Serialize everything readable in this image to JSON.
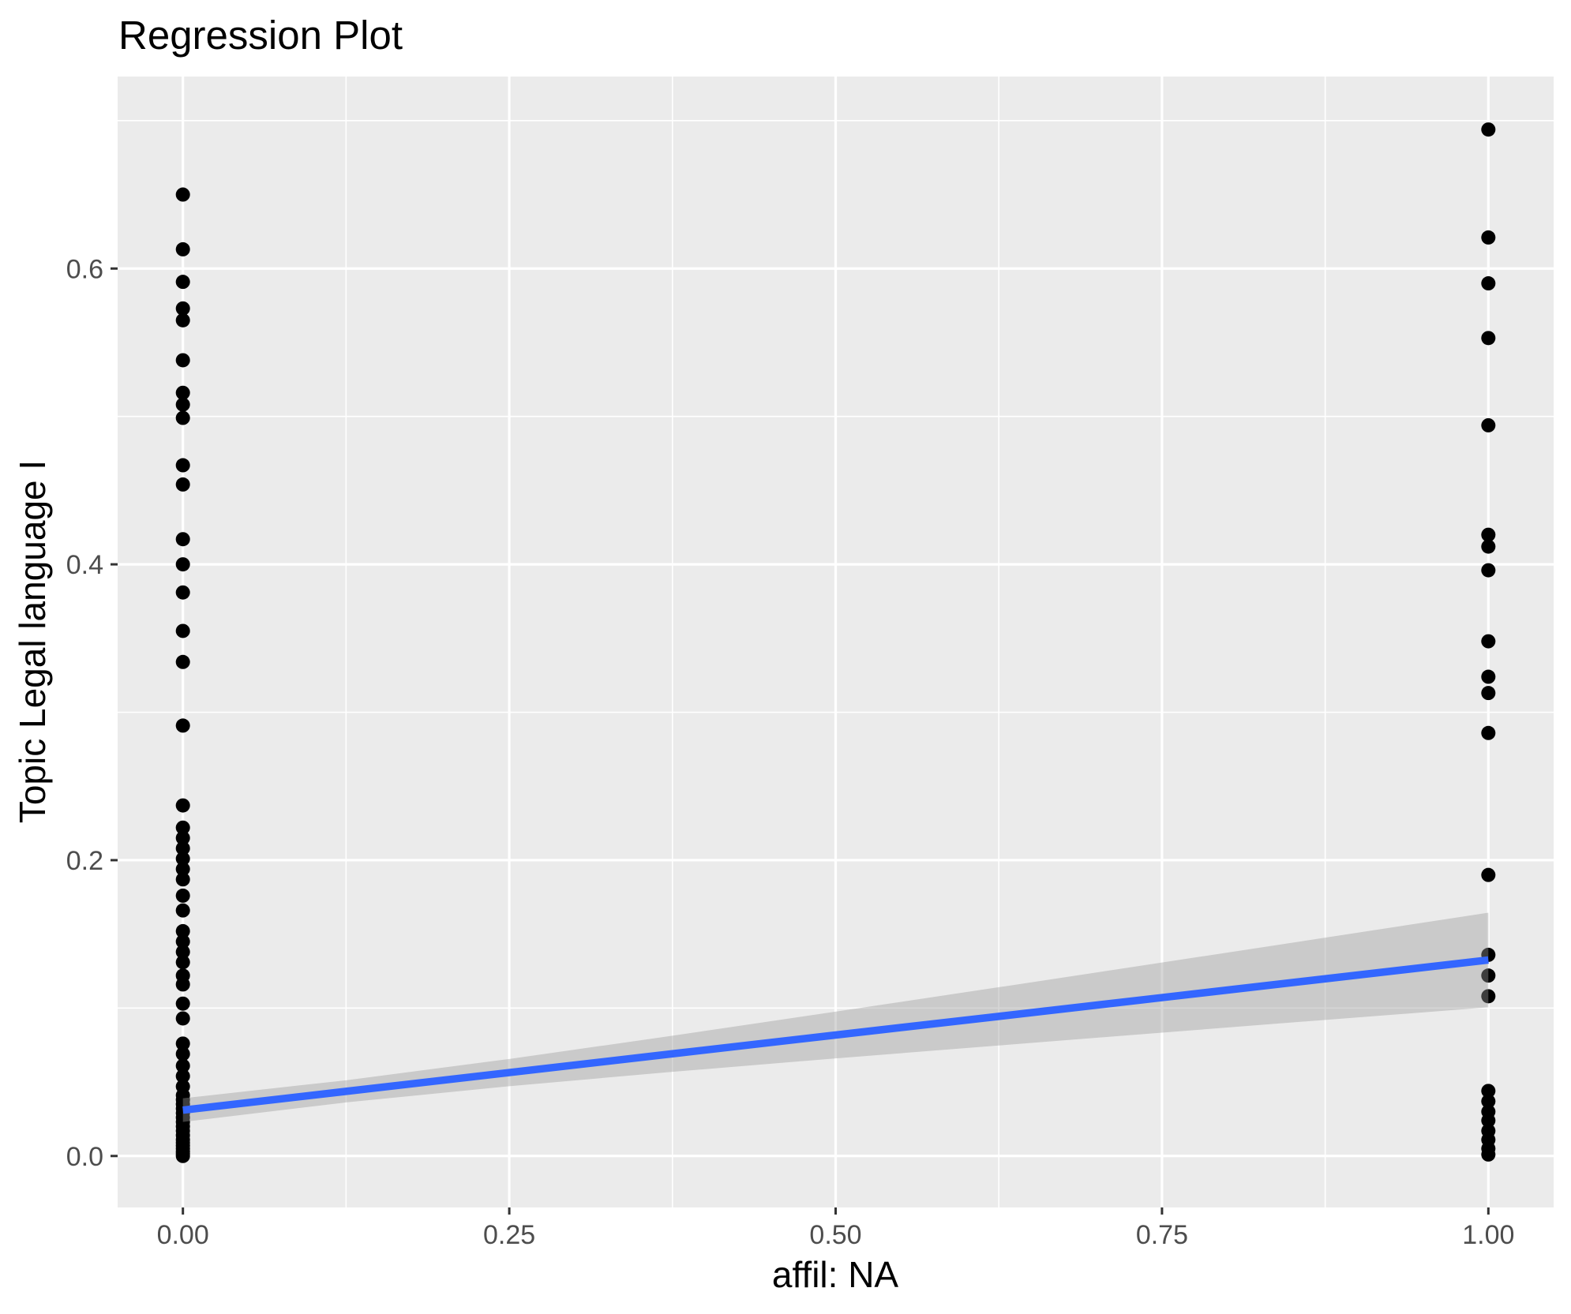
{
  "chart_data": {
    "type": "scatter",
    "title": "Regression Plot",
    "xlabel": "affil: NA",
    "ylabel": "Topic Legal language I",
    "xlim": [
      -0.05,
      1.05
    ],
    "ylim": [
      -0.0348,
      0.7298
    ],
    "x_major": [
      0,
      0.25,
      0.5,
      0.75,
      1.0
    ],
    "x_minor": [
      0.125,
      0.375,
      0.625,
      0.875
    ],
    "y_major": [
      0,
      0.2,
      0.4,
      0.6
    ],
    "y_minor": [
      0.1,
      0.3,
      0.5,
      0.7
    ],
    "x_tick_labels": [
      "0.00",
      "0.25",
      "0.50",
      "0.75",
      "1.00"
    ],
    "y_tick_labels": [
      "0.0",
      "0.2",
      "0.4",
      "0.6"
    ],
    "grid": "on",
    "legend": "none",
    "series": [
      {
        "name": "affil = 0",
        "x": 0,
        "y": [
          0.65,
          0.613,
          0.591,
          0.573,
          0.565,
          0.538,
          0.516,
          0.508,
          0.499,
          0.467,
          0.454,
          0.417,
          0.4,
          0.381,
          0.355,
          0.334,
          0.291,
          0.237,
          0.222,
          0.215,
          0.208,
          0.201,
          0.194,
          0.187,
          0.176,
          0.166,
          0.152,
          0.145,
          0.138,
          0.131,
          0.122,
          0.116,
          0.103,
          0.093,
          0.076,
          0.069,
          0.061,
          0.054,
          0.047,
          0.041,
          0.038,
          0.035,
          0.032,
          0.029,
          0.026,
          0.023,
          0.02,
          0.017,
          0.014,
          0.011,
          0.009,
          0.007,
          0.005,
          0.003,
          0.0015,
          0.0
        ]
      },
      {
        "name": "affil = 1",
        "x": 1,
        "y": [
          0.694,
          0.621,
          0.59,
          0.553,
          0.494,
          0.42,
          0.412,
          0.396,
          0.348,
          0.324,
          0.313,
          0.286,
          0.19,
          0.136,
          0.122,
          0.108,
          0.044,
          0.037,
          0.03,
          0.024,
          0.017,
          0.011,
          0.005,
          0.001
        ]
      }
    ],
    "regression": {
      "intercept": 0.031,
      "slope": 0.1015,
      "x": [
        0,
        0.125,
        0.25,
        0.375,
        0.5,
        0.625,
        0.75,
        0.875,
        1.0
      ],
      "fit": [
        0.031,
        0.0437,
        0.0564,
        0.0691,
        0.0818,
        0.0944,
        0.1071,
        0.1198,
        0.1325
      ],
      "upper": [
        0.039,
        0.0512,
        0.0656,
        0.0813,
        0.0976,
        0.1141,
        0.1308,
        0.1476,
        0.1645
      ],
      "lower": [
        0.023,
        0.0362,
        0.0472,
        0.0569,
        0.066,
        0.0747,
        0.0834,
        0.092,
        0.1005
      ]
    },
    "colors": {
      "panel_background": "#EBEBEB",
      "gridline": "#FFFFFF",
      "point": "#000000",
      "regression_line": "#3366FF",
      "confidence_band": "#999999",
      "confidence_band_alpha": 0.4,
      "tick_label": "#4D4D4D",
      "tick_mark": "#333333",
      "title": "#000000"
    }
  }
}
